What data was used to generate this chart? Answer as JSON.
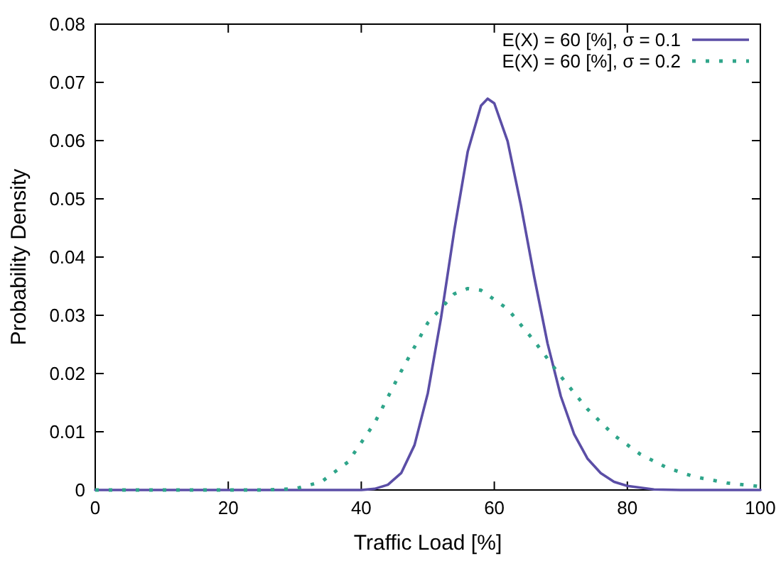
{
  "chart_data": {
    "type": "line",
    "xlabel": "Traffic Load [%]",
    "ylabel": "Probability Density",
    "xlim": [
      0,
      100
    ],
    "xticks": [
      0,
      20,
      40,
      60,
      80,
      100
    ],
    "ylim": [
      0,
      0.08
    ],
    "yticks": [
      0,
      0.01,
      0.02,
      0.03,
      0.04,
      0.05,
      0.06,
      0.07,
      0.08
    ],
    "grid": false,
    "legend": "top right",
    "marker": "none",
    "series": [
      {
        "name": "E(X) = 60 [%], σ = 0.1",
        "color": "#5b4ea6",
        "line_style": "solid",
        "x": [
          0,
          30,
          40,
          42,
          44,
          46,
          48,
          50,
          52,
          54,
          56,
          58,
          59,
          60,
          62,
          64,
          66,
          68,
          70,
          72,
          74,
          76,
          78,
          80,
          84,
          88,
          100
        ],
        "values": [
          0,
          0,
          0,
          0.0002,
          0.0009,
          0.0029,
          0.0077,
          0.0166,
          0.0296,
          0.0447,
          0.0581,
          0.066,
          0.0672,
          0.0664,
          0.0599,
          0.0489,
          0.0366,
          0.0252,
          0.0161,
          0.0096,
          0.0054,
          0.0029,
          0.0014,
          0.0007,
          0.0001,
          0,
          0
        ]
      },
      {
        "name": "E(X) = 60 [%], σ = 0.2",
        "color": "#2fa58a",
        "line_style": "dotted",
        "x": [
          0,
          20,
          25,
          30,
          34,
          38,
          42,
          46,
          50,
          54,
          56,
          58,
          62,
          66,
          70,
          74,
          78,
          82,
          86,
          90,
          95,
          100
        ],
        "values": [
          0,
          0,
          0,
          0.0002,
          0.0014,
          0.0048,
          0.0115,
          0.0204,
          0.0287,
          0.0337,
          0.0346,
          0.0343,
          0.0311,
          0.0256,
          0.0195,
          0.0139,
          0.0094,
          0.0061,
          0.0038,
          0.0023,
          0.0012,
          0.0006
        ]
      }
    ]
  }
}
